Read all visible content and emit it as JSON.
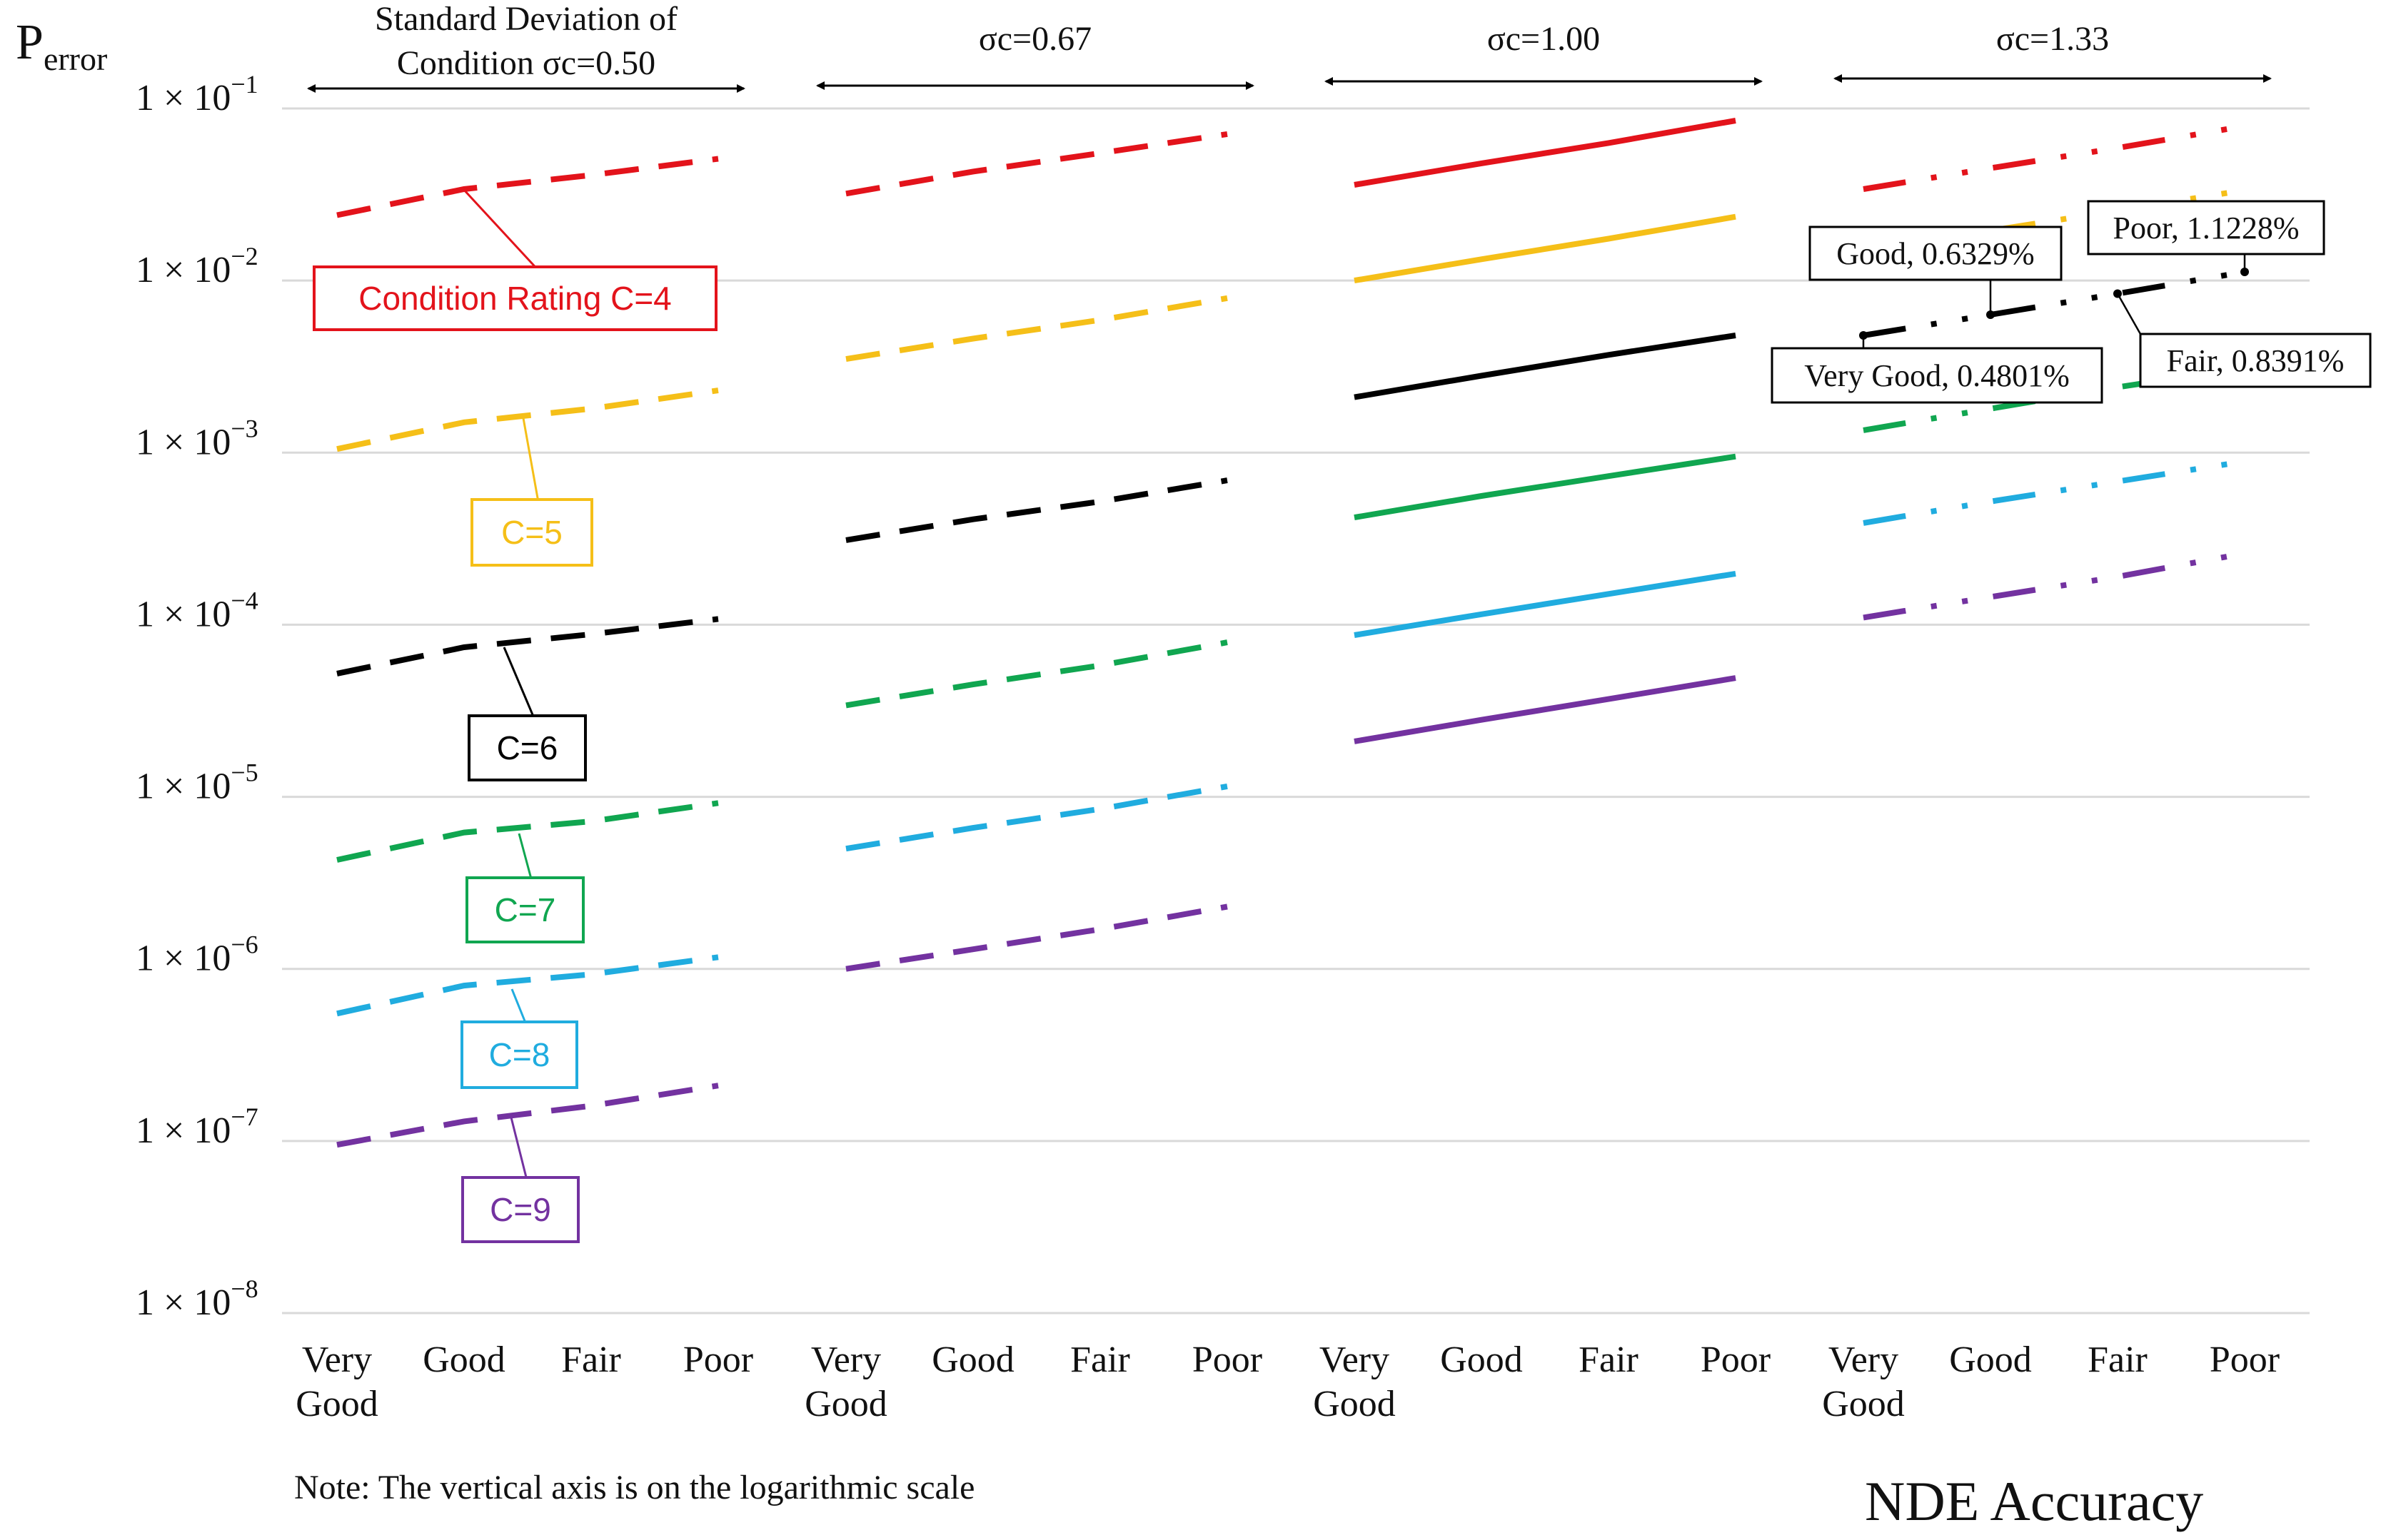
{
  "chart_data": {
    "type": "line",
    "yscale": "log",
    "ylim": [
      1e-08,
      0.1
    ],
    "yticks": [
      0.1,
      0.01,
      0.001,
      0.0001,
      1e-05,
      1e-06,
      1e-07,
      1e-08
    ],
    "ytick_labels": [
      "1 × 10",
      "1 × 10",
      "1 × 10",
      "1 × 10",
      "1 × 10",
      "1 × 10",
      "1 × 10",
      "1 × 10"
    ],
    "ytick_exponents": [
      "−1",
      "−2",
      "−3",
      "−4",
      "−5",
      "−6",
      "−7",
      "−8"
    ],
    "ylabel_main": "P",
    "ylabel_sub": "error",
    "xlabel": "NDE Accuracy",
    "note": "Note: The vertical axis is on the logarithmic scale",
    "categories": [
      "Very Good",
      "Good",
      "Fair",
      "Poor"
    ],
    "category_lines": [
      [
        "Very",
        "Good"
      ],
      [
        "Good"
      ],
      [
        "Fair"
      ],
      [
        "Poor"
      ]
    ],
    "panels": [
      {
        "sigma": 0.5,
        "header_lines": [
          "Standard Deviation of",
          "Condition σc=0.50"
        ],
        "line_style": "dashed",
        "series": [
          {
            "name": "C=4",
            "values": [
              0.024,
              0.034,
              0.041,
              0.051
            ]
          },
          {
            "name": "C=5",
            "values": [
              0.00105,
              0.0015,
              0.0018,
              0.0023
            ]
          },
          {
            "name": "C=6",
            "values": [
              5.2e-05,
              7.4e-05,
              8.8e-05,
              0.000108
            ]
          },
          {
            "name": "C=7",
            "values": [
              4.3e-06,
              6.2e-06,
              7.2e-06,
              9.2e-06
            ]
          },
          {
            "name": "C=8",
            "values": [
              5.5e-07,
              8e-07,
              9.3e-07,
              1.17e-06
            ]
          },
          {
            "name": "C=9",
            "values": [
              9.5e-08,
              1.3e-07,
              1.6e-07,
              2.1e-07
            ]
          }
        ]
      },
      {
        "sigma": 0.67,
        "header_lines": [
          "σc=0.67"
        ],
        "line_style": "dashed",
        "series": [
          {
            "name": "C=4",
            "values": [
              0.032,
              0.043,
              0.055,
              0.071
            ]
          },
          {
            "name": "C=5",
            "values": [
              0.0035,
              0.0046,
              0.0059,
              0.0079
            ]
          },
          {
            "name": "C=6",
            "values": [
              0.00031,
              0.00041,
              0.00052,
              0.00069
            ]
          },
          {
            "name": "C=7",
            "values": [
              3.4e-05,
              4.5e-05,
              5.8e-05,
              7.9e-05
            ]
          },
          {
            "name": "C=8",
            "values": [
              5e-06,
              6.6e-06,
              8.5e-06,
              1.15e-05
            ]
          },
          {
            "name": "C=9",
            "values": [
              1e-06,
              1.3e-06,
              1.7e-06,
              2.3e-06
            ]
          }
        ]
      },
      {
        "sigma": 1.0,
        "header_lines": [
          "σc=1.00"
        ],
        "line_style": "solid",
        "series": [
          {
            "name": "C=4",
            "values": [
              0.036,
              0.048,
              0.063,
              0.085
            ]
          },
          {
            "name": "C=5",
            "values": [
              0.01,
              0.0133,
              0.0175,
              0.0235
            ]
          },
          {
            "name": "C=6",
            "values": [
              0.0021,
              0.0028,
              0.0037,
              0.0048
            ]
          },
          {
            "name": "C=7",
            "values": [
              0.00042,
              0.00056,
              0.00073,
              0.00095
            ]
          },
          {
            "name": "C=8",
            "values": [
              8.7e-05,
              0.000115,
              0.000151,
              0.000198
            ]
          },
          {
            "name": "C=9",
            "values": [
              2.1e-05,
              2.8e-05,
              3.7e-05,
              4.9e-05
            ]
          }
        ]
      },
      {
        "sigma": 1.33,
        "header_lines": [
          "σc=1.33"
        ],
        "line_style": "dash-dot-dot",
        "series": [
          {
            "name": "C=4",
            "values": [
              0.034,
              0.045,
              0.059,
              0.079
            ]
          },
          {
            "name": "C=5",
            "values": [
              0.0147,
              0.0195,
              0.0255,
              0.0335
            ]
          },
          {
            "name": "C=6",
            "values": [
              0.004801,
              0.006329,
              0.008391,
              0.011228
            ]
          },
          {
            "name": "C=7",
            "values": [
              0.00135,
              0.0018,
              0.0024,
              0.0031
            ]
          },
          {
            "name": "C=8",
            "values": [
              0.00039,
              0.00052,
              0.00068,
              0.00089
            ]
          },
          {
            "name": "C=9",
            "values": [
              0.00011,
              0.000145,
              0.00019,
              0.00026
            ]
          }
        ]
      }
    ],
    "series_colors": {
      "C=4": "#e3131b",
      "C=5": "#f5bf18",
      "C=6": "#000000",
      "C=7": "#10a650",
      "C=8": "#20acdf",
      "C=9": "#7332a0"
    },
    "series_labels": [
      {
        "series": "C=4",
        "text": "Condition Rating C=4"
      },
      {
        "series": "C=5",
        "text": "C=5"
      },
      {
        "series": "C=6",
        "text": "C=6"
      },
      {
        "series": "C=7",
        "text": "C=7"
      },
      {
        "series": "C=8",
        "text": "C=8"
      },
      {
        "series": "C=9",
        "text": "C=9"
      }
    ],
    "annotations": [
      {
        "text": "Very Good, 0.4801%",
        "panel": 3,
        "series": "C=6",
        "point": 0
      },
      {
        "text": "Good, 0.6329%",
        "panel": 3,
        "series": "C=6",
        "point": 1
      },
      {
        "text": "Fair, 0.8391%",
        "panel": 3,
        "series": "C=6",
        "point": 2
      },
      {
        "text": "Poor, 1.1228%",
        "panel": 3,
        "series": "C=6",
        "point": 3
      }
    ]
  }
}
